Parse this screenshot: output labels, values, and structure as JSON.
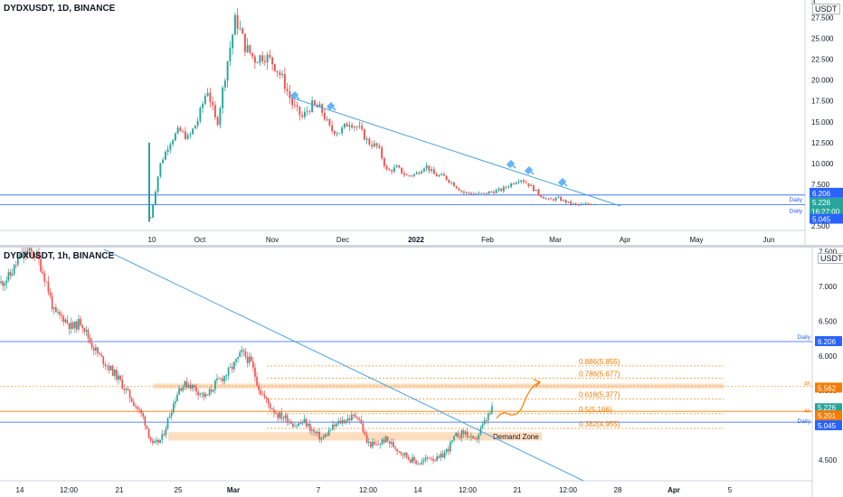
{
  "top": {
    "title": "DYDXUSDT, 1D, BINANCE",
    "currency": "USDT",
    "y_ticks": [
      "3",
      "27.500",
      "25.000",
      "22.500",
      "20.000",
      "17.500",
      "15.000",
      "12.500",
      "10.000",
      "7.500",
      "5.000",
      "2.500"
    ],
    "x_ticks": [
      "10",
      "Oct",
      "Nov",
      "Dec",
      "2022",
      "Feb",
      "Mar",
      "Apr",
      "May",
      "Jun"
    ],
    "levels": [
      {
        "label": "Daily",
        "value": "6.206",
        "color": "#2962ff"
      },
      {
        "label": "Daily",
        "value": "5.045",
        "color": "#2962ff"
      }
    ],
    "price_tag": {
      "value": "5.226",
      "countdown": "16:27:00",
      "color": "#26a69a"
    }
  },
  "bottom": {
    "title": "DYDXUSDT, 1h, BINANCE",
    "currency": "USDT",
    "y_ticks": [
      "7.500",
      "7.000",
      "6.500",
      "6.000",
      "5.500",
      "5.000",
      "4.500"
    ],
    "x_ticks": [
      "14",
      "12:00",
      "21",
      "25",
      "Mar",
      "7",
      "12:00",
      "14",
      "12:00",
      "21",
      "12:00",
      "28",
      "Apr",
      "5"
    ],
    "fibs": [
      {
        "label": "0.886(5.855)",
        "value": 5.855
      },
      {
        "label": "0.786(5.677)",
        "value": 5.677
      },
      {
        "label": "0.618(5.377)",
        "value": 5.377
      },
      {
        "label": "0.5(5.166)",
        "value": 5.166
      },
      {
        "label": "0.382(4.955)",
        "value": 4.955
      }
    ],
    "demand_zone_label": "Demand Zone",
    "tags": [
      {
        "label": "Daily",
        "value": "6.206",
        "color": "#2962ff"
      },
      {
        "label": "4h",
        "value": "5.562",
        "color": "#f57c00"
      },
      {
        "label": "4h",
        "value": "5.201",
        "color": "#f57c00"
      },
      {
        "label": "Daily",
        "value": "5.045",
        "color": "#2962ff"
      }
    ],
    "price_tag": {
      "value": "5.226",
      "countdown": "26:59",
      "color": "#26a69a"
    }
  },
  "colors": {
    "up": "#26a69a",
    "down": "#ef5350",
    "trend": "#4aa3df",
    "fib": "#f57c00",
    "zone": "#fcd9b8"
  },
  "chart_data": [
    {
      "type": "candlestick",
      "title": "DYDXUSDT, 1D, BINANCE",
      "x_labels": [
        "10",
        "Oct",
        "Nov",
        "Dec",
        "2022",
        "Feb",
        "Mar",
        "Apr",
        "May",
        "Jun"
      ],
      "ylim": [
        2.5,
        30
      ],
      "close_path": [
        3.5,
        9.8,
        12.5,
        14,
        13,
        15.2,
        19,
        14.5,
        21.5,
        27.5,
        24,
        22.5,
        23,
        22,
        20,
        17,
        15.5,
        17,
        16.5,
        14,
        13.8,
        15,
        14.2,
        12.5,
        12,
        9,
        9.5,
        8.5,
        8.7,
        9.8,
        8.6,
        8.4,
        7.5,
        6.5,
        6.4,
        6.3,
        6.6,
        6.8,
        7.5,
        8.2,
        7.4,
        6.3,
        5.6,
        5.8,
        5.3,
        5.0,
        5.1,
        5.226
      ],
      "levels": [
        6.206,
        5.045
      ]
    },
    {
      "type": "candlestick",
      "title": "DYDXUSDT, 1h, BINANCE",
      "x_labels": [
        "14",
        "12:00",
        "21",
        "25",
        "Mar",
        "7",
        "12:00",
        "14",
        "12:00",
        "21",
        "12:00",
        "28",
        "Apr",
        "5"
      ],
      "ylim": [
        4.3,
        7.6
      ],
      "close_path": [
        7.05,
        7.15,
        7.4,
        7.5,
        7.45,
        7.1,
        6.6,
        6.55,
        6.4,
        6.5,
        6.2,
        6.0,
        5.85,
        5.7,
        5.5,
        5.3,
        5.1,
        4.7,
        4.8,
        5.2,
        5.55,
        5.6,
        5.5,
        5.4,
        5.6,
        5.7,
        5.85,
        6.05,
        5.9,
        5.5,
        5.3,
        5.15,
        5.1,
        5.0,
        5.05,
        4.9,
        4.8,
        4.95,
        5.05,
        5.1,
        5.15,
        4.75,
        4.7,
        4.8,
        4.7,
        4.6,
        4.5,
        4.45,
        4.55,
        4.5,
        4.65,
        4.85,
        4.9,
        4.75,
        5.0,
        5.226
      ],
      "fib_levels": [
        5.855,
        5.677,
        5.377,
        5.166,
        4.955
      ],
      "levels": [
        6.206,
        5.562,
        5.201,
        5.045
      ],
      "demand_zone": [
        4.78,
        4.9
      ]
    }
  ]
}
